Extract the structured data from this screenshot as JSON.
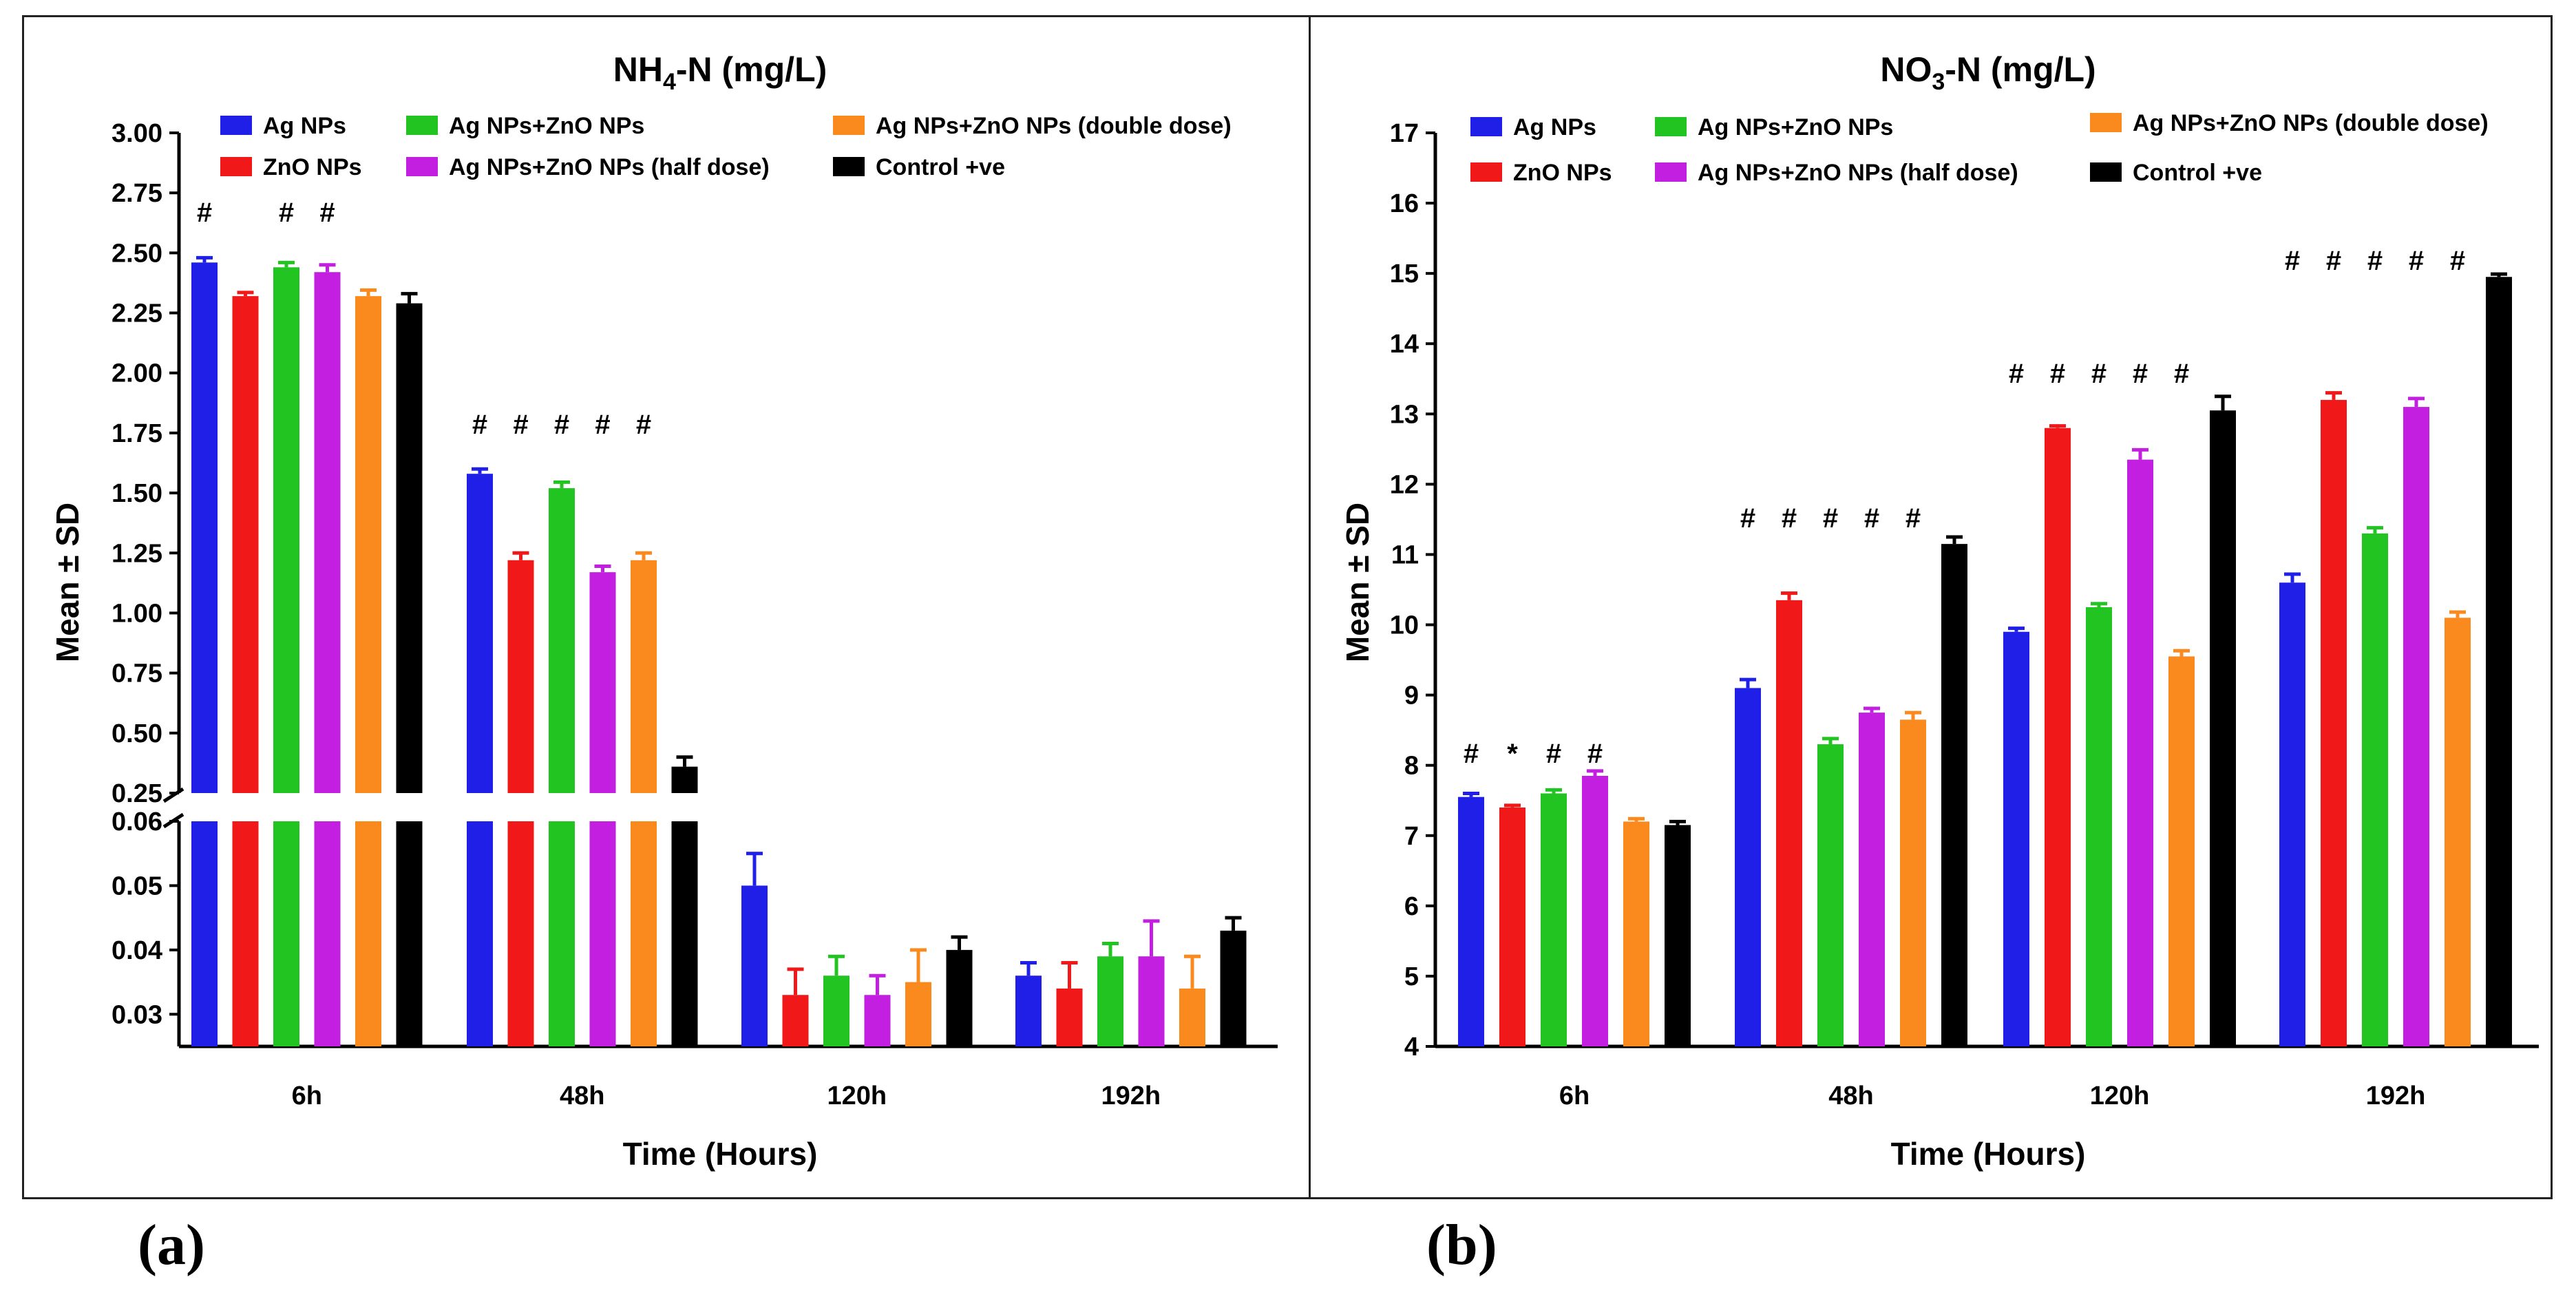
{
  "colors": {
    "Ag NPs": "#1f1fe8",
    "ZnO NPs": "#f01818",
    "Ag NPs+ZnO NPs": "#22c422",
    "Ag NPs+ZnO NPs (half dose)": "#c21fe0",
    "Ag NPs+ZnO NPs (double dose)": "#fa8a1e",
    "Control +ve": "#000000"
  },
  "panel_labels": {
    "a": "(a)",
    "b": "(b)"
  },
  "chart_data": [
    {
      "type": "bar",
      "title_main": "NH",
      "title_sub": "4",
      "title_rest": "-N (mg/L)",
      "xlabel": "Time (Hours)",
      "ylabel": "Mean ± SD",
      "categories": [
        "6h",
        "48h",
        "120h",
        "192h"
      ],
      "y_broken": true,
      "upper_ylim": [
        0.25,
        3.0
      ],
      "upper_ticks": [
        "0.25",
        "0.50",
        "0.75",
        "1.00",
        "1.25",
        "1.50",
        "1.75",
        "2.00",
        "2.25",
        "2.50",
        "2.75",
        "3.00"
      ],
      "lower_ylim": [
        0.025,
        0.06
      ],
      "lower_ticks": [
        "0.03",
        "0.04",
        "0.05",
        "0.06"
      ],
      "legend_position": "top",
      "legend_order": [
        "Ag NPs",
        "ZnO NPs",
        "Ag NPs+ZnO NPs",
        "Ag NPs+ZnO NPs (half dose)",
        "Ag NPs+ZnO NPs (double dose)",
        "Control +ve"
      ],
      "series": [
        {
          "name": "Ag NPs",
          "values": [
            2.46,
            1.58,
            0.05,
            0.036
          ],
          "errors": [
            0.02,
            0.02,
            0.005,
            0.002
          ]
        },
        {
          "name": "ZnO NPs",
          "values": [
            2.32,
            1.22,
            0.033,
            0.034
          ],
          "errors": [
            0.015,
            0.03,
            0.004,
            0.004
          ]
        },
        {
          "name": "Ag NPs+ZnO NPs",
          "values": [
            2.44,
            1.52,
            0.036,
            0.039
          ],
          "errors": [
            0.02,
            0.025,
            0.003,
            0.002
          ]
        },
        {
          "name": "Ag NPs+ZnO NPs (half dose)",
          "values": [
            2.42,
            1.17,
            0.033,
            0.039
          ],
          "errors": [
            0.03,
            0.025,
            0.003,
            0.0055
          ]
        },
        {
          "name": "Ag NPs+ZnO NPs (double dose)",
          "values": [
            2.32,
            1.22,
            0.035,
            0.034
          ],
          "errors": [
            0.025,
            0.03,
            0.005,
            0.005
          ]
        },
        {
          "name": "Control +ve",
          "values": [
            2.29,
            0.36,
            0.04,
            0.043
          ],
          "errors": [
            0.04,
            0.04,
            0.002,
            0.002
          ]
        }
      ],
      "annotations": [
        {
          "category": "6h",
          "markers": [
            "#",
            "",
            "#",
            "#",
            "",
            ""
          ]
        },
        {
          "category": "48h",
          "markers": [
            "#",
            "#",
            "#",
            "#",
            "#",
            ""
          ]
        },
        {
          "category": "120h",
          "markers": [
            "",
            "",
            "",
            "",
            "",
            ""
          ]
        },
        {
          "category": "192h",
          "markers": [
            "",
            "",
            "",
            "",
            "",
            ""
          ]
        }
      ]
    },
    {
      "type": "bar",
      "title_main": "NO",
      "title_sub": "3",
      "title_rest": "-N (mg/L)",
      "xlabel": "Time (Hours)",
      "ylabel": "Mean ± SD",
      "categories": [
        "6h",
        "48h",
        "120h",
        "192h"
      ],
      "ylim": [
        4,
        17
      ],
      "yticks": [
        "4",
        "5",
        "6",
        "7",
        "8",
        "9",
        "10",
        "11",
        "12",
        "13",
        "14",
        "15",
        "16",
        "17"
      ],
      "legend_position": "top",
      "legend_order": [
        "Ag NPs",
        "ZnO NPs",
        "Ag NPs+ZnO NPs",
        "Ag NPs+ZnO NPs (half dose)",
        "Ag NPs+ZnO NPs (double dose)",
        "Control +ve"
      ],
      "series": [
        {
          "name": "Ag NPs",
          "values": [
            7.55,
            9.1,
            9.9,
            10.6
          ],
          "errors": [
            0.05,
            0.12,
            0.05,
            0.12
          ]
        },
        {
          "name": "ZnO NPs",
          "values": [
            7.4,
            10.35,
            12.8,
            13.2
          ],
          "errors": [
            0.03,
            0.1,
            0.03,
            0.1
          ]
        },
        {
          "name": "Ag NPs+ZnO NPs",
          "values": [
            7.6,
            8.3,
            10.25,
            11.3
          ],
          "errors": [
            0.05,
            0.08,
            0.05,
            0.08
          ]
        },
        {
          "name": "Ag NPs+ZnO NPs (half dose)",
          "values": [
            7.85,
            8.75,
            12.35,
            13.1
          ],
          "errors": [
            0.07,
            0.06,
            0.14,
            0.12
          ]
        },
        {
          "name": "Ag NPs+ZnO NPs (double dose)",
          "values": [
            7.2,
            8.65,
            9.55,
            10.1
          ],
          "errors": [
            0.04,
            0.1,
            0.08,
            0.08
          ]
        },
        {
          "name": "Control +ve",
          "values": [
            7.15,
            11.15,
            13.05,
            14.95
          ],
          "errors": [
            0.05,
            0.1,
            0.2,
            0.04
          ]
        }
      ],
      "annotations": [
        {
          "category": "6h",
          "markers": [
            "#",
            "*",
            "#",
            "#",
            "",
            ""
          ]
        },
        {
          "category": "48h",
          "markers": [
            "#",
            "#",
            "#",
            "#",
            "#",
            ""
          ]
        },
        {
          "category": "120h",
          "markers": [
            "#",
            "#",
            "#",
            "#",
            "#",
            ""
          ]
        },
        {
          "category": "192h",
          "markers": [
            "#",
            "#",
            "#",
            "#",
            "#",
            ""
          ]
        }
      ]
    }
  ]
}
